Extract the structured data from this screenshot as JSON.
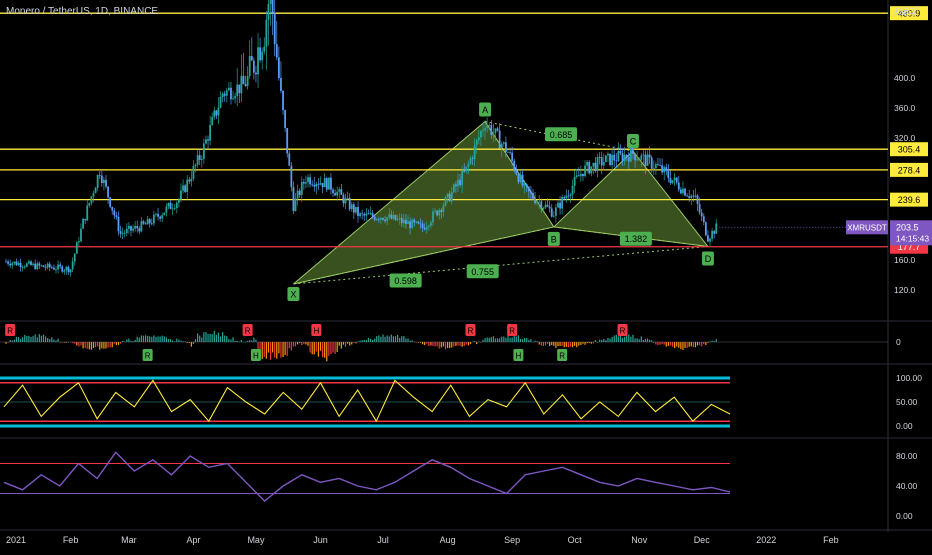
{
  "header": {
    "title": "Monero / TetherUS, 1D, BINANCE",
    "currency": "USDT"
  },
  "price_axis": {
    "ticks": [
      "440.0",
      "400.0",
      "360.0",
      "320.0",
      "200.0",
      "160.0",
      "120.0"
    ]
  },
  "time_axis": {
    "ticks": [
      "2021",
      "Feb",
      "Mar",
      "Apr",
      "May",
      "Jun",
      "Jul",
      "Aug",
      "Sep",
      "Oct",
      "Nov",
      "Dec",
      "2022",
      "Feb"
    ]
  },
  "level_lines": [
    {
      "value": 439.9,
      "label": "439.9",
      "color": "#ffeb3b"
    },
    {
      "value": 305.4,
      "label": "305.4",
      "color": "#ffeb3b"
    },
    {
      "value": 278.4,
      "label": "278.4",
      "color": "#ffeb3b"
    },
    {
      "value": 239.6,
      "label": "239.6",
      "color": "#ffeb3b"
    },
    {
      "value": 177.7,
      "label": "177.7",
      "color": "#f23645"
    }
  ],
  "last_price": {
    "symbol": "XMRUSDT",
    "value": "203.5",
    "countdown": "14:15:43",
    "color": "#7e57c2"
  },
  "harmonic_pattern": {
    "points": [
      {
        "label": "X",
        "date": "2021-05-19",
        "price": 128
      },
      {
        "label": "A",
        "date": "2021-08-19",
        "price": 342
      },
      {
        "label": "B",
        "date": "2021-09-21",
        "price": 204
      },
      {
        "label": "C",
        "date": "2021-10-29",
        "price": 303
      },
      {
        "label": "D",
        "date": "2021-12-04",
        "price": 178
      }
    ],
    "ratios": [
      "0.685",
      "0.598",
      "0.755",
      "1.382"
    ],
    "fill_color": "#7cb342",
    "label_color": "#4caf50"
  },
  "chart_data": [
    {
      "type": "candlestick",
      "title": "Monero / TetherUS, 1D, BINANCE",
      "ylabel": "USDT",
      "ylim": [
        100,
        450
      ],
      "xlim": [
        "2021-01-01",
        "2022-02-15"
      ],
      "grid": false,
      "x": [
        "2021-01-01",
        "2021-01-15",
        "2021-02-01",
        "2021-02-07",
        "2021-02-15",
        "2021-02-25",
        "2021-03-10",
        "2021-03-25",
        "2021-04-05",
        "2021-04-15",
        "2021-04-25",
        "2021-05-05",
        "2021-05-08",
        "2021-05-12",
        "2021-05-19",
        "2021-05-25",
        "2021-06-05",
        "2021-06-20",
        "2021-07-01",
        "2021-07-20",
        "2021-08-01",
        "2021-08-10",
        "2021-08-19",
        "2021-08-30",
        "2021-09-07",
        "2021-09-21",
        "2021-10-05",
        "2021-10-15",
        "2021-10-29",
        "2021-11-10",
        "2021-11-20",
        "2021-11-28",
        "2021-12-04",
        "2021-12-08"
      ],
      "close": [
        158,
        152,
        148,
        210,
        278,
        195,
        208,
        240,
        300,
        380,
        390,
        430,
        455,
        400,
        232,
        268,
        260,
        218,
        218,
        203,
        240,
        278,
        342,
        302,
        252,
        222,
        278,
        290,
        300,
        282,
        258,
        240,
        190,
        203
      ],
      "annotations": [
        "A",
        "B",
        "C",
        "D",
        "X",
        "0.685",
        "0.598",
        "0.755",
        "1.382"
      ]
    },
    {
      "type": "bar",
      "title": "",
      "ylim": [
        -1,
        1
      ],
      "yticks": [
        "0"
      ],
      "signals": [
        {
          "label": "R",
          "color": "#f23645",
          "date": "2021-01-03",
          "position": "above"
        },
        {
          "label": "R",
          "color": "#4caf50",
          "date": "2021-03-10",
          "position": "below"
        },
        {
          "label": "R",
          "color": "#f23645",
          "date": "2021-04-27",
          "position": "above"
        },
        {
          "label": "H",
          "color": "#4caf50",
          "date": "2021-05-01",
          "position": "below"
        },
        {
          "label": "H",
          "color": "#f23645",
          "date": "2021-05-30",
          "position": "above"
        },
        {
          "label": "R",
          "color": "#f23645",
          "date": "2021-08-12",
          "position": "above"
        },
        {
          "label": "R",
          "color": "#f23645",
          "date": "2021-09-01",
          "position": "above"
        },
        {
          "label": "H",
          "color": "#4caf50",
          "date": "2021-09-04",
          "position": "below"
        },
        {
          "label": "R",
          "color": "#4caf50",
          "date": "2021-09-25",
          "position": "below"
        },
        {
          "label": "R",
          "color": "#f23645",
          "date": "2021-10-24",
          "position": "above"
        }
      ]
    },
    {
      "type": "line",
      "title": "",
      "ylim": [
        0,
        100
      ],
      "yticks": [
        "100.00",
        "50.00",
        "0.00"
      ],
      "bands": [
        {
          "value": 100,
          "color": "#00bcd4"
        },
        {
          "value": 90,
          "color": "#f23645"
        },
        {
          "value": 10,
          "color": "#f23645"
        },
        {
          "value": 0,
          "color": "#00bcd4"
        }
      ],
      "series": [
        {
          "color": "#ffeb3b",
          "values": [
            40,
            85,
            20,
            60,
            90,
            15,
            70,
            40,
            95,
            30,
            55,
            10,
            80,
            50,
            25,
            70,
            35,
            90,
            20,
            75,
            10,
            95,
            60,
            30,
            85,
            20,
            55,
            40,
            90,
            25,
            65,
            15,
            50,
            20,
            70,
            30,
            60,
            10,
            45,
            25
          ]
        }
      ]
    },
    {
      "type": "line",
      "title": "",
      "ylim": [
        0,
        100
      ],
      "yticks": [
        "80.00",
        "40.00",
        "0.00"
      ],
      "bands": [
        {
          "value": 70,
          "color": "#f23645"
        },
        {
          "value": 30,
          "color": "#7e57c2"
        }
      ],
      "series": [
        {
          "color": "#7e57c2",
          "values": [
            45,
            35,
            55,
            40,
            70,
            50,
            85,
            60,
            75,
            55,
            80,
            65,
            70,
            45,
            20,
            40,
            55,
            45,
            50,
            40,
            35,
            45,
            60,
            75,
            65,
            50,
            40,
            30,
            55,
            60,
            65,
            55,
            45,
            40,
            50,
            45,
            40,
            35,
            38,
            32
          ]
        }
      ]
    }
  ]
}
